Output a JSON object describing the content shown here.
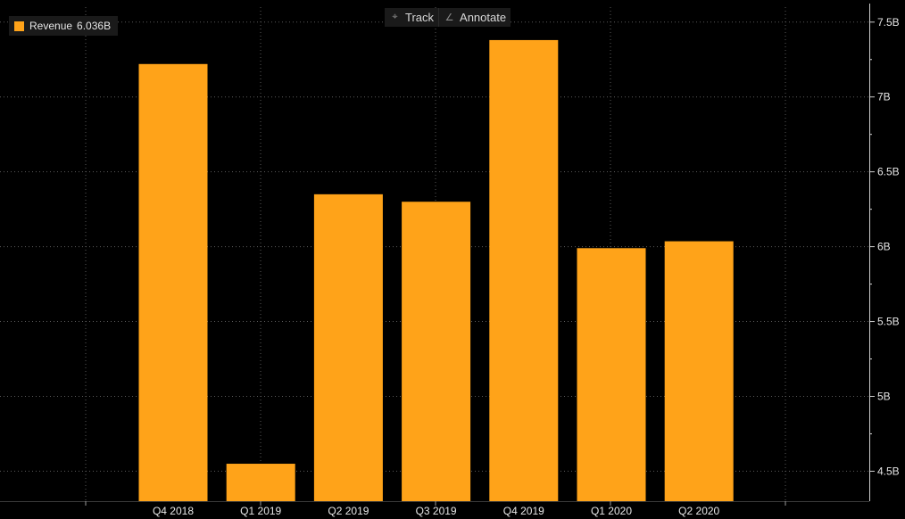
{
  "toolbar": {
    "track_label": "Track",
    "annotate_label": "Annotate",
    "track_icon": "crosshair-icon",
    "annotate_icon": "pencil-icon"
  },
  "legend": {
    "label": "Revenue",
    "value": "6.036B",
    "color": "#ffa319"
  },
  "colors": {
    "background": "#000000",
    "bar": "#ffa319",
    "grid": "#5a5a5a",
    "text": "#e6e6e6"
  },
  "chart_data": {
    "type": "bar",
    "categories": [
      "Q4 2018",
      "Q1 2019",
      "Q2 2019",
      "Q3 2019",
      "Q4 2019",
      "Q1 2020",
      "Q2 2020"
    ],
    "series": [
      {
        "name": "Revenue",
        "values": [
          7.22,
          4.55,
          6.35,
          6.3,
          7.38,
          5.99,
          6.036
        ]
      }
    ],
    "yticks": [
      4.5,
      5,
      5.5,
      6,
      6.5,
      7,
      7.5
    ],
    "ytick_labels": [
      "4.5B",
      "5B",
      "5.5B",
      "6B",
      "6.5B",
      "7B",
      "7.5B"
    ],
    "ylim": [
      4.3,
      7.6
    ],
    "y_axis_side": "right",
    "grid": true,
    "legend_position": "top-left"
  }
}
